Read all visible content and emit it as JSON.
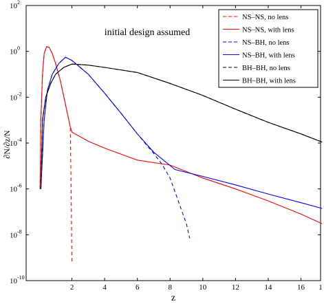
{
  "chart_data": {
    "type": "line",
    "annotation": "initial design assumed",
    "x_label": "z",
    "y_label": "∂N/∂z/N",
    "log_y": true,
    "xlim": [
      -0.8,
      17.2
    ],
    "ylim": [
      1e-10,
      100
    ],
    "xticks": [
      2,
      4,
      6,
      8,
      10,
      12,
      14,
      16,
      {
        "value": 17.2,
        "label": "1"
      }
    ],
    "yticks": [
      {
        "value": 1e-10,
        "label": "10",
        "exponent": "-10"
      },
      {
        "value": 1e-08,
        "label": "10",
        "exponent": "-8"
      },
      {
        "value": 1e-06,
        "label": "10",
        "exponent": "-6"
      },
      {
        "value": 0.0001,
        "label": "10",
        "exponent": "-4"
      },
      {
        "value": 0.01,
        "label": "10",
        "exponent": "-2"
      },
      {
        "value": 1,
        "label": "10",
        "exponent": "0"
      },
      {
        "value": 100,
        "label": "10",
        "exponent": "2"
      }
    ],
    "legend": "upper right",
    "series": [
      {
        "name": "NS–NS, no lens",
        "color": "#ff0000",
        "dash": true,
        "x": [
          0.05,
          0.1,
          0.2,
          0.3,
          0.45,
          0.6,
          0.8,
          1.0,
          1.3,
          1.6,
          1.9,
          1.95,
          2.0
        ],
        "values": [
          1e-06,
          0.001,
          0.1,
          0.8,
          1.6,
          1.5,
          0.8,
          0.3,
          0.05,
          0.005,
          0.0005,
          1e-06,
          6e-10
        ]
      },
      {
        "name": "NS–NS, with lens",
        "color": "#ff0000",
        "dash": false,
        "x": [
          0.05,
          0.1,
          0.2,
          0.3,
          0.45,
          0.6,
          0.8,
          1.0,
          1.3,
          1.6,
          1.9,
          2,
          3,
          4,
          6,
          8,
          8.3,
          10,
          12,
          14,
          16,
          17.3
        ],
        "values": [
          1e-06,
          0.001,
          0.1,
          0.8,
          1.6,
          1.5,
          0.8,
          0.3,
          0.05,
          0.005,
          0.0005,
          0.0003,
          0.00012,
          6e-05,
          1.8e-05,
          1.1e-05,
          9e-06,
          3e-06,
          1e-06,
          3e-07,
          8e-08,
          3e-08
        ]
      },
      {
        "name": "NS–BH, no lens",
        "color": "#0000ff",
        "dash": true,
        "x": [
          0.1,
          0.3,
          0.5,
          0.8,
          1.2,
          1.6,
          2,
          3,
          4,
          5,
          6,
          7,
          7.5,
          8,
          8.5,
          9,
          9.2
        ],
        "values": [
          1e-06,
          0.001,
          0.02,
          0.1,
          0.3,
          0.55,
          0.4,
          0.1,
          0.015,
          0.002,
          0.00025,
          3.5e-05,
          1.2e-05,
          3e-06,
          3e-07,
          3e-08,
          7e-09
        ]
      },
      {
        "name": "NS–BH, with lens",
        "color": "#0000ff",
        "dash": false,
        "x": [
          0.1,
          0.3,
          0.5,
          0.8,
          1.2,
          1.6,
          2,
          3,
          4,
          5,
          6,
          7,
          8.3,
          10,
          12,
          14,
          16,
          17.3
        ],
        "values": [
          1e-06,
          0.001,
          0.02,
          0.1,
          0.3,
          0.55,
          0.4,
          0.1,
          0.015,
          0.002,
          0.00025,
          4e-05,
          7e-06,
          3.5e-06,
          1.5e-06,
          6e-07,
          2.5e-07,
          1.4e-07
        ]
      },
      {
        "name": "BH–BH, no lens",
        "color": "#000000",
        "dash": true,
        "x": [
          0.1,
          0.2,
          0.4,
          0.7,
          1,
          1.5,
          2,
          3,
          4,
          6,
          8,
          10,
          12,
          14,
          16,
          17.3
        ],
        "values": [
          1e-06,
          0.001,
          0.01,
          0.04,
          0.1,
          0.2,
          0.28,
          0.25,
          0.2,
          0.12,
          0.04,
          0.012,
          0.003,
          0.0008,
          0.00025,
          0.00011
        ]
      },
      {
        "name": "BH–BH, with lens",
        "color": "#000000",
        "dash": false,
        "x": [
          0.1,
          0.2,
          0.4,
          0.7,
          1,
          1.5,
          2,
          3,
          4,
          6,
          8,
          10,
          12,
          14,
          16,
          17.3
        ],
        "values": [
          1e-06,
          0.001,
          0.01,
          0.04,
          0.1,
          0.2,
          0.28,
          0.25,
          0.2,
          0.12,
          0.04,
          0.012,
          0.003,
          0.0008,
          0.00025,
          0.00011
        ]
      }
    ]
  }
}
